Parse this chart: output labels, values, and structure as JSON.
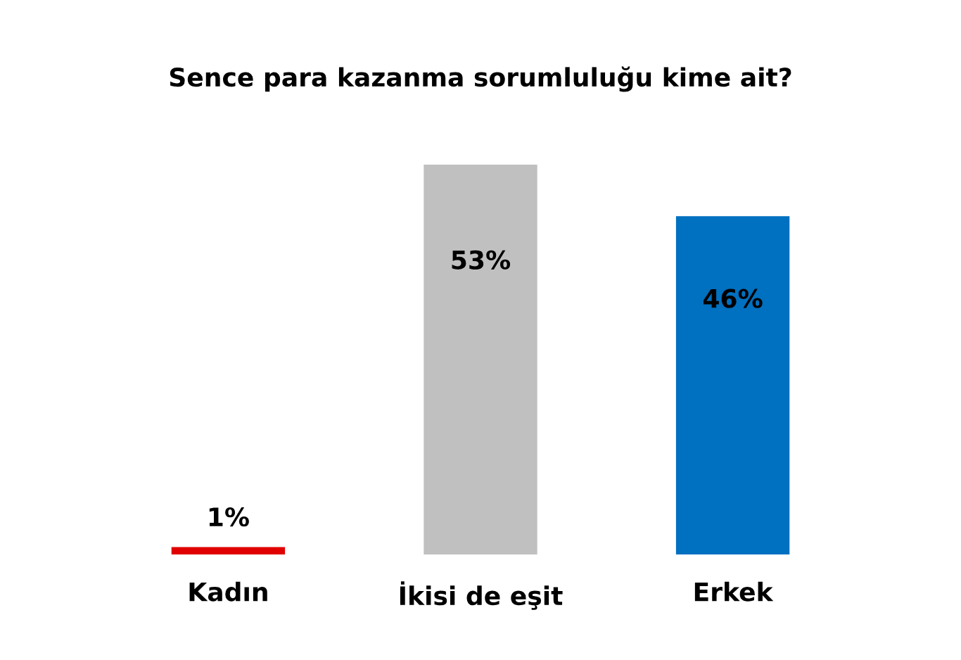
{
  "chart_data": {
    "type": "bar",
    "title": "Sence para kazanma sorumluluğu kime ait?",
    "categories": [
      "Kadın",
      "İkisi de eşit",
      "Erkek"
    ],
    "values": [
      1,
      53,
      46
    ],
    "colors": [
      "#e00000",
      "#c0c0c0",
      "#0070c0"
    ],
    "value_labels": [
      "1%",
      "53%",
      "46%"
    ],
    "grid": false
  }
}
